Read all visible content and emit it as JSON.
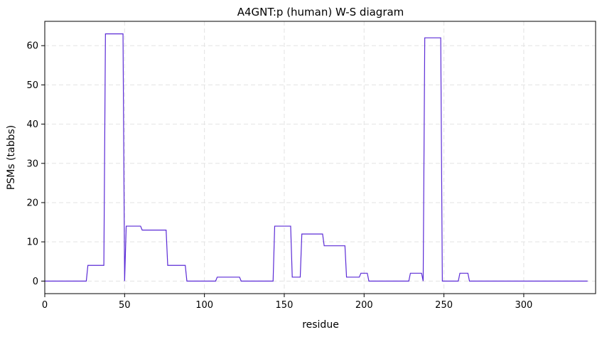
{
  "chart_data": {
    "type": "line",
    "title": "A4GNT:p (human) W-S diagram",
    "xlabel": "residue",
    "ylabel": "PSMs (tabbs)",
    "xlim": [
      0,
      345
    ],
    "ylim": [
      -3.2,
      66.2
    ],
    "xticks": [
      0,
      50,
      100,
      150,
      200,
      250,
      300
    ],
    "yticks": [
      0,
      10,
      20,
      30,
      40,
      50,
      60
    ],
    "grid": true,
    "legend": "none",
    "series": [
      {
        "color": "#5b2bd6",
        "x": [
          0,
          26,
          27,
          37,
          38,
          49,
          50,
          51,
          60,
          61,
          76,
          77,
          88,
          89,
          107,
          108,
          122,
          123,
          143,
          144,
          154,
          155,
          160,
          161,
          174,
          175,
          188,
          189,
          197,
          198,
          202,
          203,
          228,
          229,
          236,
          237,
          238,
          248,
          249,
          259,
          260,
          265,
          266,
          340
        ],
        "y": [
          0,
          0,
          4,
          4,
          63,
          63,
          0,
          14,
          14,
          13,
          13,
          4,
          4,
          0,
          0,
          1,
          1,
          0,
          0,
          14,
          14,
          1,
          1,
          12,
          12,
          9,
          9,
          1,
          1,
          2,
          2,
          0,
          0,
          2,
          2,
          0,
          62,
          62,
          0,
          0,
          2,
          2,
          0,
          0
        ]
      }
    ]
  }
}
